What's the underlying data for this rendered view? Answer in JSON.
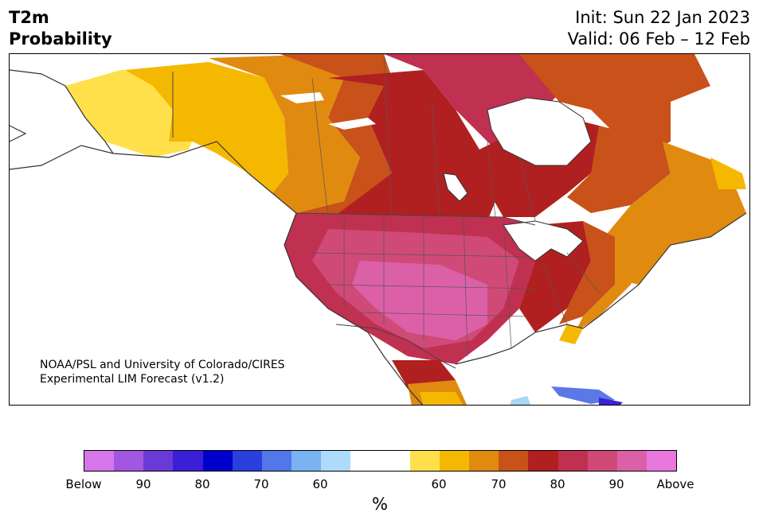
{
  "header": {
    "title_line1": "T2m",
    "title_line2": "Probability",
    "init": "Init: Sun 22 Jan 2023",
    "valid": "Valid: 06 Feb – 12 Feb"
  },
  "map": {
    "credit_line1": "NOAA/PSL and University of Colorado/CIRES",
    "credit_line2": "Experimental LIM Forecast (v1.2)",
    "colors": {
      "below_80": "#3a22d6",
      "below_70": "#5a78e8",
      "below_60": "#a9d7f5",
      "above_55": "#ffe04a",
      "above_60": "#f5b800",
      "above_65": "#e08a10",
      "above_70": "#c85219",
      "above_75": "#b02020",
      "above_80": "#c03050",
      "above_85": "#d04a78",
      "above_90": "#dc60a8"
    }
  },
  "colorbar": {
    "segments": [
      "#d676ea",
      "#a356e0",
      "#6a3ad8",
      "#3a1fd6",
      "#0000cc",
      "#2a3fdc",
      "#5277e8",
      "#7ab3f2",
      "#aedbfb",
      "#ffffff",
      "#ffffff",
      "#ffe04a",
      "#f5b800",
      "#e08a10",
      "#c85219",
      "#b02020",
      "#c03050",
      "#d04a78",
      "#dc60a8",
      "#e877de"
    ],
    "ticks": [
      "Below",
      "90",
      "80",
      "70",
      "60",
      "60",
      "70",
      "80",
      "90",
      "Above"
    ],
    "unit": "%"
  }
}
